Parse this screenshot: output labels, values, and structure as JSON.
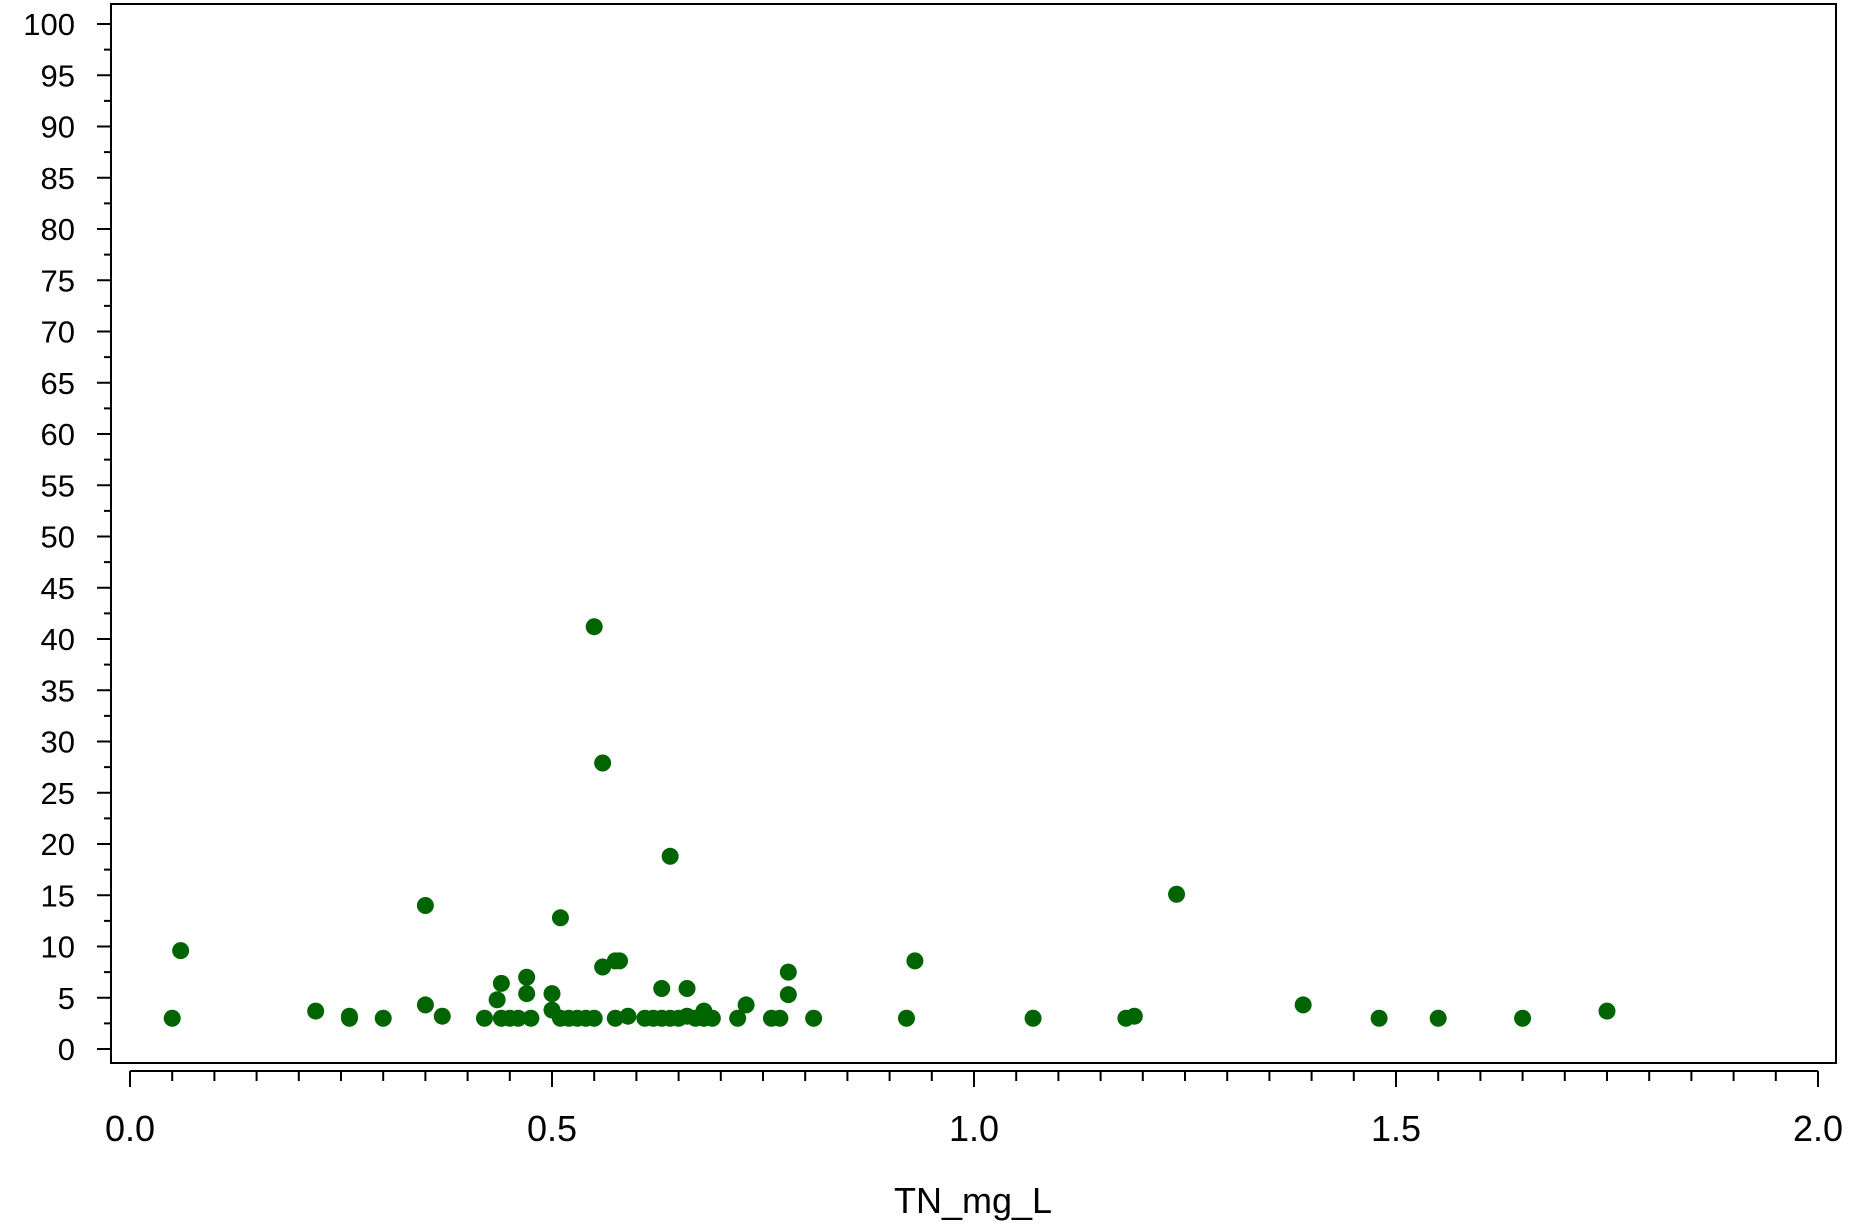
{
  "chart_data": {
    "type": "scatter",
    "title": "",
    "xlabel": "TN_mg_L",
    "ylabel": "",
    "xlim": [
      0.0,
      2.0
    ],
    "ylim": [
      0,
      100
    ],
    "x_ticks": [
      "0.0",
      "0.5",
      "1.0",
      "1.5",
      "2.0"
    ],
    "x_tick_values": [
      0.0,
      0.5,
      1.0,
      1.5,
      2.0
    ],
    "y_ticks": [
      "0",
      "5",
      "10",
      "15",
      "20",
      "25",
      "30",
      "35",
      "40",
      "45",
      "50",
      "55",
      "60",
      "65",
      "70",
      "75",
      "80",
      "85",
      "90",
      "95",
      "100"
    ],
    "y_tick_values": [
      0,
      5,
      10,
      15,
      20,
      25,
      30,
      35,
      40,
      45,
      50,
      55,
      60,
      65,
      70,
      75,
      80,
      85,
      90,
      95,
      100
    ],
    "grid": false,
    "marker_color": "#006400",
    "series": [
      {
        "points": [
          [
            0.05,
            3.0
          ],
          [
            0.06,
            9.6
          ],
          [
            0.22,
            3.7
          ],
          [
            0.26,
            3.0
          ],
          [
            0.26,
            3.2
          ],
          [
            0.3,
            3.0
          ],
          [
            0.35,
            14.0
          ],
          [
            0.35,
            4.3
          ],
          [
            0.37,
            3.2
          ],
          [
            0.42,
            3.0
          ],
          [
            0.435,
            4.8
          ],
          [
            0.44,
            6.4
          ],
          [
            0.44,
            3.0
          ],
          [
            0.45,
            3.0
          ],
          [
            0.46,
            3.0
          ],
          [
            0.47,
            5.4
          ],
          [
            0.47,
            7.0
          ],
          [
            0.475,
            3.0
          ],
          [
            0.5,
            5.4
          ],
          [
            0.5,
            3.8
          ],
          [
            0.51,
            12.8
          ],
          [
            0.51,
            3.0
          ],
          [
            0.52,
            3.0
          ],
          [
            0.53,
            3.0
          ],
          [
            0.54,
            3.0
          ],
          [
            0.55,
            3.0
          ],
          [
            0.55,
            41.2
          ],
          [
            0.56,
            8.0
          ],
          [
            0.56,
            27.9
          ],
          [
            0.575,
            3.0
          ],
          [
            0.575,
            8.6
          ],
          [
            0.58,
            8.6
          ],
          [
            0.59,
            3.2
          ],
          [
            0.61,
            3.0
          ],
          [
            0.62,
            3.0
          ],
          [
            0.63,
            3.0
          ],
          [
            0.63,
            5.9
          ],
          [
            0.64,
            3.0
          ],
          [
            0.64,
            18.8
          ],
          [
            0.65,
            3.0
          ],
          [
            0.66,
            5.9
          ],
          [
            0.66,
            3.2
          ],
          [
            0.67,
            3.0
          ],
          [
            0.68,
            3.7
          ],
          [
            0.68,
            3.0
          ],
          [
            0.69,
            3.0
          ],
          [
            0.72,
            3.0
          ],
          [
            0.73,
            4.3
          ],
          [
            0.76,
            3.0
          ],
          [
            0.77,
            3.0
          ],
          [
            0.78,
            7.5
          ],
          [
            0.78,
            5.3
          ],
          [
            0.81,
            3.0
          ],
          [
            0.92,
            3.0
          ],
          [
            0.93,
            8.6
          ],
          [
            1.07,
            3.0
          ],
          [
            1.18,
            3.0
          ],
          [
            1.19,
            3.2
          ],
          [
            1.24,
            15.1
          ],
          [
            1.39,
            4.3
          ],
          [
            1.48,
            3.0
          ],
          [
            1.55,
            3.0
          ],
          [
            1.65,
            3.0
          ],
          [
            1.75,
            3.7
          ]
        ]
      }
    ]
  }
}
